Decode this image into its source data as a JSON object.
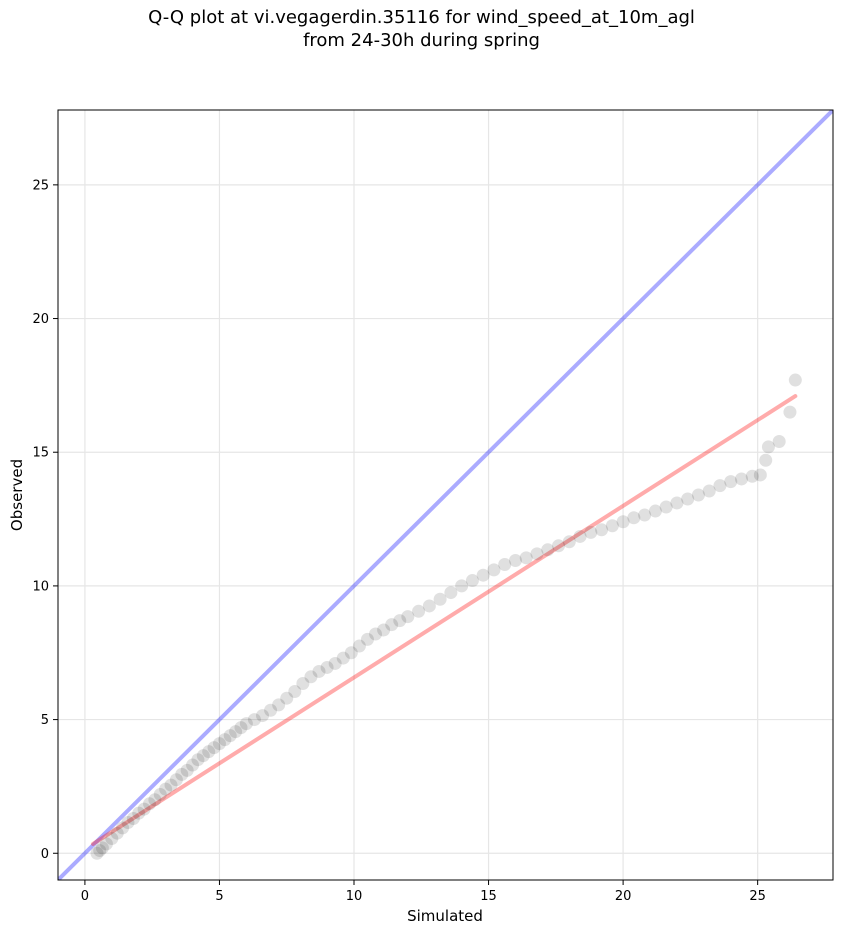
{
  "chart_data": {
    "type": "scatter",
    "title": "Q-Q plot at vi.vegagerdin.35116 for wind_speed_at_10m_agl",
    "subtitle": "from 24-30h during spring",
    "xlabel": "Simulated",
    "ylabel": "Observed",
    "xlim": [
      -1.0,
      27.8
    ],
    "ylim": [
      -1.0,
      27.8
    ],
    "xticks": [
      0,
      5,
      10,
      15,
      20,
      25
    ],
    "yticks": [
      0,
      5,
      10,
      15,
      20,
      25
    ],
    "grid": true,
    "colors": {
      "points": "#000000",
      "identity_line": "#0000ff",
      "fit_line": "#ff0000",
      "grid": "#e6e6e6"
    },
    "reference_line": {
      "x": [
        -1.0,
        27.8
      ],
      "y": [
        -1.0,
        27.8
      ]
    },
    "fit_line": {
      "x": [
        0.3,
        26.4
      ],
      "y": [
        0.35,
        17.1
      ]
    },
    "quantiles": {
      "x": [
        0.45,
        0.55,
        0.65,
        0.8,
        1.0,
        1.2,
        1.4,
        1.6,
        1.8,
        2.0,
        2.2,
        2.4,
        2.6,
        2.8,
        3.0,
        3.2,
        3.4,
        3.6,
        3.8,
        4.0,
        4.2,
        4.4,
        4.6,
        4.8,
        5.0,
        5.2,
        5.4,
        5.6,
        5.8,
        6.0,
        6.3,
        6.6,
        6.9,
        7.2,
        7.5,
        7.8,
        8.1,
        8.4,
        8.7,
        9.0,
        9.3,
        9.6,
        9.9,
        10.2,
        10.5,
        10.8,
        11.1,
        11.4,
        11.7,
        12.0,
        12.4,
        12.8,
        13.2,
        13.6,
        14.0,
        14.4,
        14.8,
        15.2,
        15.6,
        16.0,
        16.4,
        16.8,
        17.2,
        17.6,
        18.0,
        18.4,
        18.8,
        19.2,
        19.6,
        20.0,
        20.4,
        20.8,
        21.2,
        21.6,
        22.0,
        22.4,
        22.8,
        23.2,
        23.6,
        24.0,
        24.4,
        24.8,
        25.1,
        25.3,
        25.4,
        25.8,
        26.2,
        26.4
      ],
      "y": [
        0.0,
        0.1,
        0.2,
        0.35,
        0.55,
        0.75,
        0.95,
        1.15,
        1.3,
        1.5,
        1.65,
        1.85,
        2.0,
        2.2,
        2.4,
        2.55,
        2.75,
        2.95,
        3.1,
        3.3,
        3.5,
        3.65,
        3.8,
        3.95,
        4.1,
        4.25,
        4.4,
        4.55,
        4.7,
        4.85,
        5.0,
        5.15,
        5.35,
        5.55,
        5.8,
        6.05,
        6.35,
        6.6,
        6.8,
        6.95,
        7.1,
        7.3,
        7.5,
        7.75,
        8.0,
        8.2,
        8.35,
        8.55,
        8.7,
        8.85,
        9.05,
        9.25,
        9.5,
        9.75,
        10.0,
        10.2,
        10.4,
        10.6,
        10.8,
        10.95,
        11.05,
        11.2,
        11.35,
        11.5,
        11.65,
        11.85,
        12.0,
        12.1,
        12.25,
        12.4,
        12.55,
        12.65,
        12.8,
        12.95,
        13.1,
        13.25,
        13.4,
        13.55,
        13.75,
        13.9,
        14.0,
        14.1,
        14.15,
        14.7,
        15.2,
        15.4,
        16.5,
        17.7
      ]
    }
  }
}
